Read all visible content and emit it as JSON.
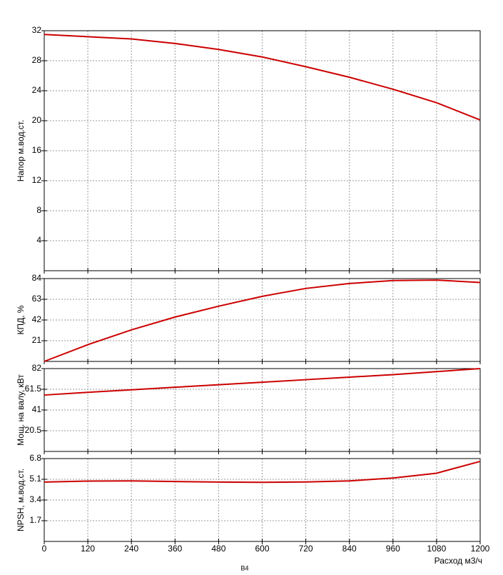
{
  "chart_data": [
    {
      "type": "line",
      "ylabel": "Напор м.вод.ст.",
      "x": [
        0,
        120,
        240,
        360,
        480,
        600,
        720,
        840,
        960,
        1080,
        1200
      ],
      "series": [
        {
          "color": "#cc0000",
          "values": [
            31.5,
            31.2,
            30.9,
            30.3,
            29.5,
            28.5,
            27.2,
            25.8,
            24.2,
            22.4,
            20.1
          ]
        }
      ],
      "xlim": [
        0,
        1200
      ],
      "xticks": [
        0,
        120,
        240,
        360,
        480,
        600,
        720,
        840,
        960,
        1080,
        1200
      ],
      "ylim": [
        0,
        32
      ],
      "yticks": [
        4,
        8,
        12,
        16,
        20,
        24,
        28,
        32
      ],
      "grid": true
    },
    {
      "type": "line",
      "ylabel": "КПД, %",
      "x": [
        0,
        120,
        240,
        360,
        480,
        600,
        720,
        840,
        960,
        1080,
        1200
      ],
      "series": [
        {
          "color": "#cc0000",
          "values": [
            0,
            17,
            32,
            45,
            56,
            66,
            74,
            79,
            82,
            82.5,
            80
          ]
        }
      ],
      "xlim": [
        0,
        1200
      ],
      "xticks": [
        0,
        120,
        240,
        360,
        480,
        600,
        720,
        840,
        960,
        1080,
        1200
      ],
      "ylim": [
        0,
        84
      ],
      "yticks": [
        21,
        42,
        63,
        84
      ],
      "grid": true
    },
    {
      "type": "line",
      "ylabel": "Мощ. на валу, кВт",
      "x": [
        0,
        120,
        240,
        360,
        480,
        600,
        720,
        840,
        960,
        1080,
        1200
      ],
      "series": [
        {
          "color": "#cc0000",
          "values": [
            55.8,
            58.5,
            61,
            63.5,
            66,
            68.5,
            71,
            73.5,
            76,
            79,
            82
          ]
        }
      ],
      "xlim": [
        0,
        1200
      ],
      "xticks": [
        0,
        120,
        240,
        360,
        480,
        600,
        720,
        840,
        960,
        1080,
        1200
      ],
      "ylim": [
        0,
        82
      ],
      "yticks": [
        20.5,
        41,
        61.5,
        82
      ],
      "grid": true
    },
    {
      "type": "line",
      "ylabel": "NPSH, м.вод.ст.",
      "xlabel": "Расход м3/ч",
      "annotation": "В4",
      "x": [
        0,
        120,
        240,
        360,
        480,
        600,
        720,
        840,
        960,
        1080,
        1200
      ],
      "series": [
        {
          "color": "#cc0000",
          "values": [
            4.87,
            4.95,
            4.97,
            4.92,
            4.87,
            4.85,
            4.88,
            4.97,
            5.2,
            5.6,
            6.57
          ]
        }
      ],
      "xlim": [
        0,
        1200
      ],
      "xticks": [
        0,
        120,
        240,
        360,
        480,
        600,
        720,
        840,
        960,
        1080,
        1200
      ],
      "ylim": [
        0,
        6.8
      ],
      "yticks": [
        1.7,
        3.4,
        5.1,
        6.8
      ],
      "grid": true
    }
  ]
}
